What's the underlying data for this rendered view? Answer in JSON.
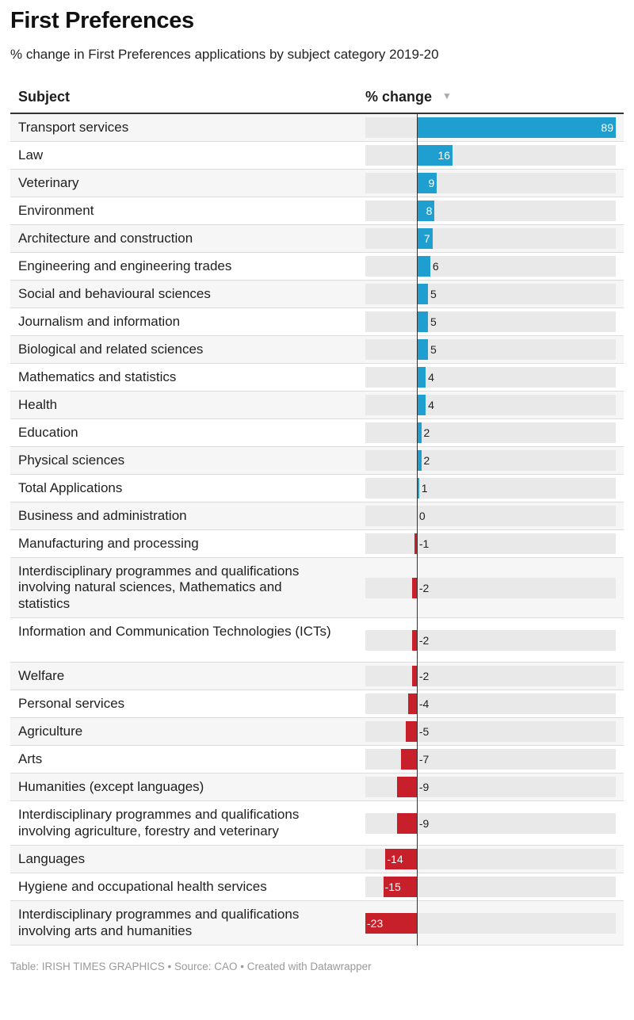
{
  "title": "First Preferences",
  "subtitle": "% change in First Preferences applications by subject category 2019-20",
  "table": {
    "col_subject": "Subject",
    "col_change": "% change",
    "sort_icon": "triangle-down-icon"
  },
  "footer": {
    "text": "Table: IRISH TIMES GRAPHICS • Source: CAO • Created with Datawrapper"
  },
  "colors": {
    "positive": "#1e9fd0",
    "negative": "#c8202a",
    "track": "#e9e9e9"
  },
  "chart_data": {
    "type": "bar",
    "orientation": "horizontal",
    "title": "First Preferences",
    "subtitle": "% change in First Preferences applications by subject category 2019-20",
    "xlim": [
      -23,
      89
    ],
    "categories": [
      "Transport services",
      "Law",
      "Veterinary",
      "Environment",
      "Architecture and construction",
      "Engineering and engineering trades",
      "Social and behavioural sciences",
      "Journalism and information",
      "Biological and related sciences",
      "Mathematics and statistics",
      "Health",
      "Education",
      "Physical sciences",
      "Total Applications",
      "Business and administration",
      "Manufacturing and processing",
      "Interdisciplinary programmes and qualifications involving natural sciences, Mathematics and statistics",
      "Information and Communication Technologies (ICTs)",
      "Welfare",
      "Personal services",
      "Agriculture",
      "Arts",
      "Humanities (except languages)",
      "Interdisciplinary programmes and qualifications involving agriculture, forestry and veterinary",
      "Languages",
      "Hygiene and occupational health services",
      "Interdisciplinary programmes and qualifications involving arts and humanities"
    ],
    "values": [
      89,
      16,
      9,
      8,
      7,
      6,
      5,
      5,
      5,
      4,
      4,
      2,
      2,
      1,
      0,
      -1,
      -2,
      -2,
      -2,
      -4,
      -5,
      -7,
      -9,
      -9,
      -14,
      -15,
      -23
    ]
  }
}
